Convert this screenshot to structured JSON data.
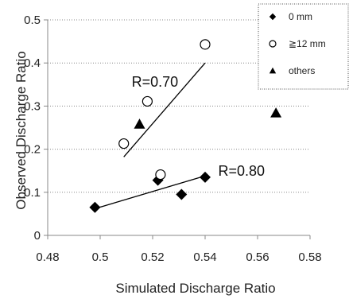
{
  "chart_data": {
    "type": "scatter",
    "xlabel": "Simulated Discharge Ratio",
    "ylabel": "Observed Discharge Ratio",
    "xlim": [
      0.48,
      0.58
    ],
    "ylim": [
      0,
      0.5
    ],
    "xticks": [
      "0.48",
      "0.5",
      "0.52",
      "0.54",
      "0.56",
      "0.58"
    ],
    "yticks": [
      "0",
      "0.1",
      "0.2",
      "0.3",
      "0.4",
      "0.5"
    ],
    "xtick_values": [
      0.48,
      0.5,
      0.52,
      0.54,
      0.56,
      0.58
    ],
    "ytick_values": [
      0,
      0.1,
      0.2,
      0.3,
      0.4,
      0.5
    ],
    "grid": "horizontal-dotted",
    "legend_position": "top-right",
    "series": [
      {
        "name": "0 mm",
        "marker": "diamond-filled",
        "points": [
          [
            0.498,
            0.065
          ],
          [
            0.522,
            0.128
          ],
          [
            0.531,
            0.095
          ],
          [
            0.54,
            0.135
          ]
        ]
      },
      {
        "name": "≧12 mm",
        "marker": "circle-open",
        "points": [
          [
            0.509,
            0.213
          ],
          [
            0.518,
            0.311
          ],
          [
            0.523,
            0.141
          ],
          [
            0.54,
            0.443
          ]
        ]
      },
      {
        "name": "others",
        "marker": "triangle-filled",
        "points": [
          [
            0.515,
            0.258
          ],
          [
            0.567,
            0.284
          ]
        ]
      }
    ],
    "fit_lines": [
      {
        "label": "R=0.80",
        "from": [
          0.498,
          0.062
        ],
        "to": [
          0.54,
          0.138
        ]
      },
      {
        "label": "R=0.70",
        "from": [
          0.509,
          0.182
        ],
        "to": [
          0.54,
          0.4
        ]
      }
    ],
    "annotations": [
      {
        "text": "R=0.70",
        "x": 0.512,
        "y": 0.345
      },
      {
        "text": "R=0.80",
        "x": 0.545,
        "y": 0.138
      }
    ],
    "colors": {
      "marker": "#000000",
      "grid": "#888888",
      "axis": "#888888"
    }
  }
}
